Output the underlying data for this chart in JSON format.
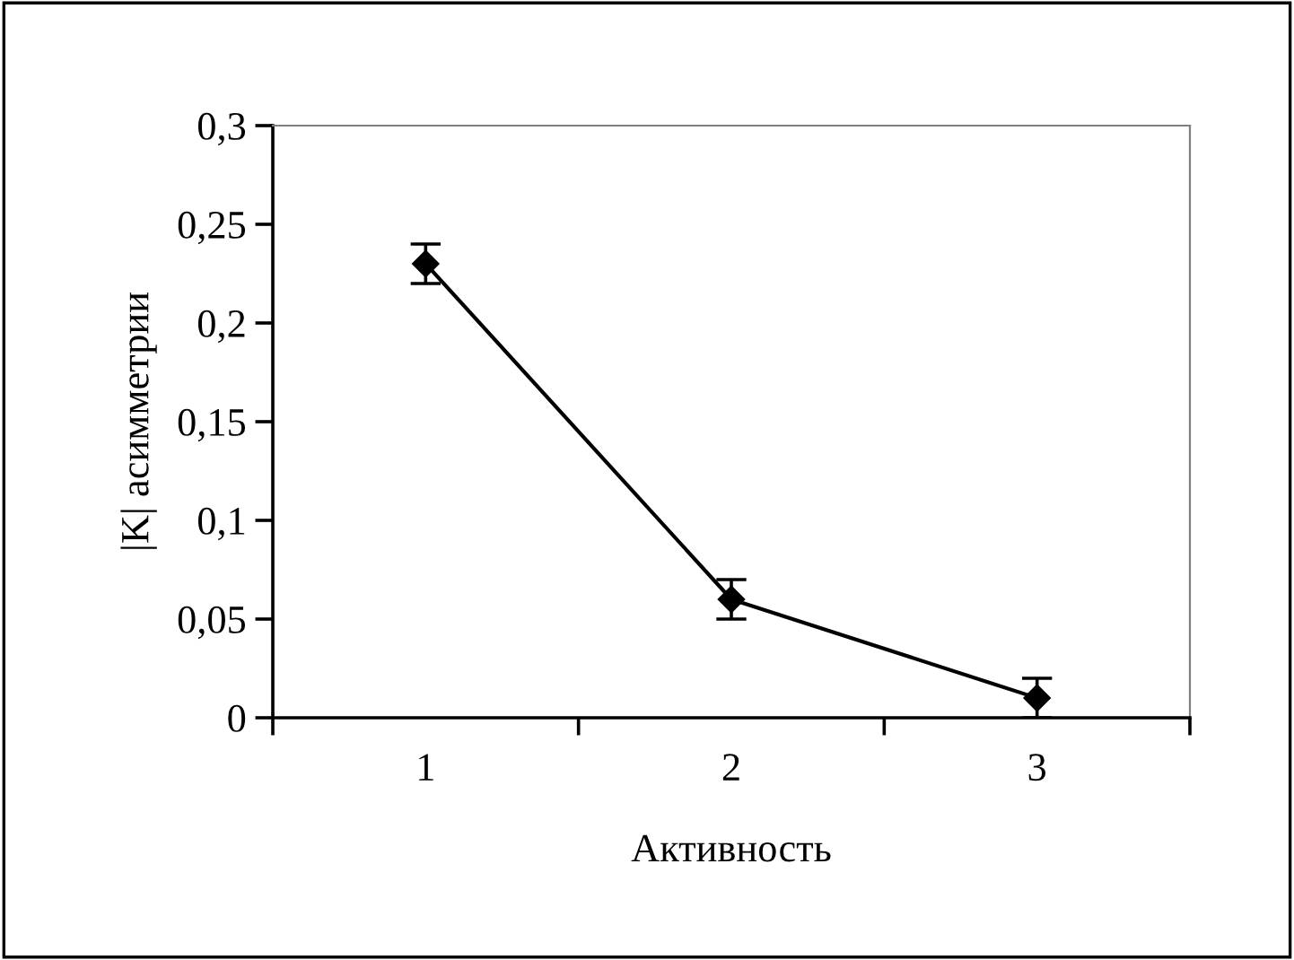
{
  "chart_data": {
    "type": "line",
    "xlabel": "Активность",
    "ylabel": "|K| асимметрии",
    "categories": [
      "1",
      "2",
      "3"
    ],
    "series": [
      {
        "color": "#000000",
        "values": [
          0.23,
          0.06,
          0.01
        ],
        "errors": [
          0.01,
          0.01,
          0.01
        ]
      }
    ],
    "ylim": [
      0,
      0.3
    ],
    "yticks": [
      0,
      {
        "value": 0.05,
        "label": "0,05"
      },
      {
        "value": 0.1,
        "label": "0,1"
      },
      {
        "value": 0.15,
        "label": "0,15"
      },
      {
        "value": 0.2,
        "label": "0,2"
      },
      {
        "value": 0.25,
        "label": "0,25"
      },
      {
        "value": 0.3,
        "label": "0,3"
      }
    ],
    "marker": "diamond",
    "line_style": "solid",
    "grid": false,
    "legend": false
  }
}
